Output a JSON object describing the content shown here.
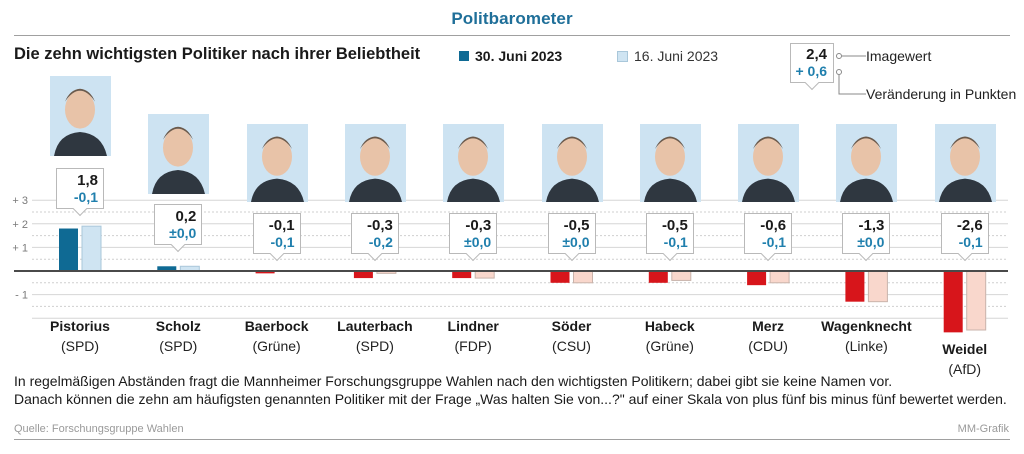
{
  "header": {
    "kicker": "Politbarometer",
    "title": "Die zehn wichtigsten Politiker nach ihrer Beliebtheit"
  },
  "legend": {
    "current": {
      "label": "30. Juni 2023",
      "color": "#0f6a94"
    },
    "previous": {
      "label": "16. Juni 2023",
      "color": "#cfe4f2"
    }
  },
  "key": {
    "example_value": "2,4",
    "example_change": "+ 0,6",
    "value_label": "Imagewert",
    "change_label": "Veränderung in Punkten"
  },
  "colors": {
    "positive_current": "#0f6a94",
    "positive_previous": "#cfe4f2",
    "negative_current": "#d7151b",
    "negative_previous": "#f9d7cc",
    "change_text": "#1f7fad"
  },
  "chart_data": {
    "type": "bar",
    "title": "Die zehn wichtigsten Politiker nach ihrer Beliebtheit",
    "xlabel": "",
    "ylabel": "Imagewert",
    "ylim": [
      -2.7,
      3
    ],
    "yticks": [
      3,
      2,
      1,
      -1
    ],
    "ytick_labels": [
      "+ 3",
      "+ 2",
      "+ 1",
      "- 1"
    ],
    "grid": true,
    "legend_position": "top-center",
    "categories": [
      "Pistorius",
      "Scholz",
      "Baerbock",
      "Lauterbach",
      "Lindner",
      "Söder",
      "Habeck",
      "Merz",
      "Wagenknecht",
      "Weidel"
    ],
    "parties": [
      "(SPD)",
      "(SPD)",
      "(Grüne)",
      "(SPD)",
      "(FDP)",
      "(CSU)",
      "(Grüne)",
      "(CDU)",
      "(Linke)",
      "(AfD)"
    ],
    "series": [
      {
        "name": "30. Juni 2023",
        "values": [
          1.8,
          0.2,
          -0.1,
          -0.3,
          -0.3,
          -0.5,
          -0.5,
          -0.6,
          -1.3,
          -2.6
        ]
      },
      {
        "name": "16. Juni 2023",
        "values": [
          1.9,
          0.2,
          0.0,
          -0.1,
          -0.3,
          -0.5,
          -0.4,
          -0.5,
          -1.3,
          -2.5
        ]
      }
    ],
    "value_labels": [
      "1,8",
      "0,2",
      "-0,1",
      "-0,3",
      "-0,3",
      "-0,5",
      "-0,5",
      "-0,6",
      "-1,3",
      "-2,6"
    ],
    "change_labels": [
      "-0,1",
      "±0,0",
      "-0,1",
      "-0,2",
      "±0,0",
      "±0,0",
      "-0,1",
      "-0,1",
      "±0,0",
      "-0,1"
    ]
  },
  "footer": {
    "description_line1": "In regelmäßigen Abständen fragt die Mannheimer Forschungsgruppe Wahlen nach den wichtigsten Politikern; dabei gibt sie keine Namen vor.",
    "description_line2": "Danach können die zehn am häufigsten genannten Politiker mit der Frage „Was halten Sie von...?\" auf einer Skala von plus fünf bis minus fünf bewertet werden.",
    "source": "Quelle: Forschungsgruppe Wahlen",
    "credit": "MM-Grafik"
  }
}
